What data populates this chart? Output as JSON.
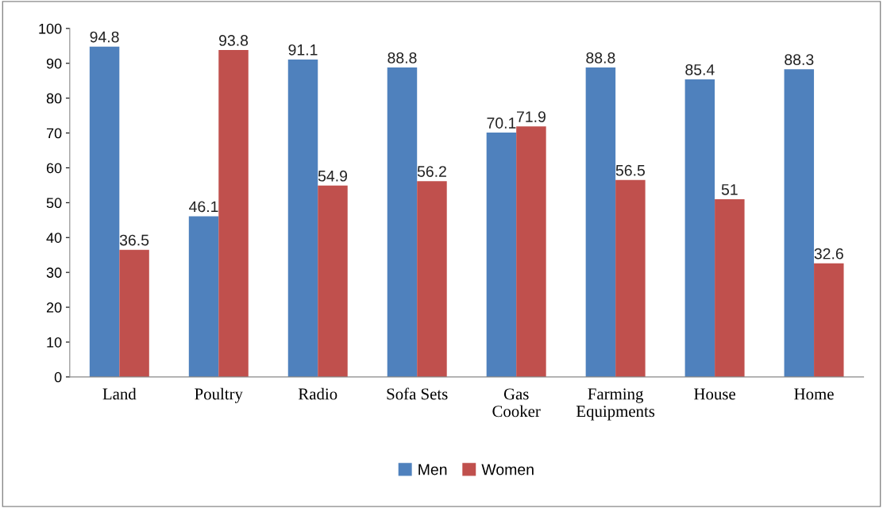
{
  "chart_data": {
    "type": "bar",
    "categories": [
      "Land",
      "Poultry",
      "Radio",
      "Sofa Sets",
      "Gas\nCooker",
      "Farming\nEquipments",
      "House",
      "Home"
    ],
    "series": [
      {
        "name": "Men",
        "color": "#4f81bd",
        "values": [
          94.8,
          46.1,
          91.1,
          88.8,
          70.1,
          88.8,
          85.4,
          88.3
        ]
      },
      {
        "name": "Women",
        "color": "#c0504d",
        "values": [
          36.5,
          93.8,
          54.9,
          56.2,
          71.9,
          56.5,
          51,
          32.6
        ]
      }
    ],
    "ylim": [
      0,
      100
    ],
    "yticks": [
      0,
      10,
      20,
      30,
      40,
      50,
      60,
      70,
      80,
      90,
      100
    ],
    "data_labels": true,
    "legend": "bottom",
    "grid": false
  }
}
